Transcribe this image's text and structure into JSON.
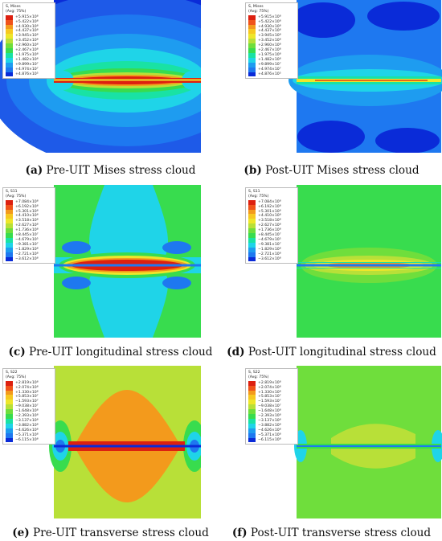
{
  "colors": {
    "blue_dark": "#0a2bd8",
    "blue_light": "#1e78f0",
    "cyan": "#1fd4e8",
    "teal": "#19e2a4",
    "green": "#38dc4e",
    "yellow_green": "#b8e038",
    "yellow": "#eee62a",
    "orange": "#f39a1c",
    "red": "#dd2010"
  },
  "legend_swatches": [
    "#dd2010",
    "#f0531a",
    "#f39a1c",
    "#f7c820",
    "#eee62a",
    "#b8e038",
    "#6fde3c",
    "#38dc4e",
    "#19e2a4",
    "#1fd4e8",
    "#1e9cf0",
    "#1e78f0",
    "#0a2bd8"
  ],
  "panels": [
    {
      "id": "a",
      "legend_title": "S, Mises",
      "legend_avg": "(Avg: 75%)",
      "legend_values": [
        "+5.915×10⁸",
        "+5.422×10⁸",
        "+4.930×10⁸",
        "+4.437×10⁸",
        "+3.945×10⁸",
        "+3.452×10⁸",
        "+2.960×10⁸",
        "+2.467×10⁸",
        "+1.975×10⁸",
        "+1.482×10⁸",
        "+9.899×10⁷",
        "+4.974×10⁷",
        "+4.876×10⁵"
      ],
      "caption_letter": "(a)",
      "caption_text": " Pre-UIT Mises stress cloud"
    },
    {
      "id": "b",
      "legend_title": "S, Mises",
      "legend_avg": "(Avg: 75%)",
      "legend_values": [
        "+5.915×10⁸",
        "+5.422×10⁸",
        "+4.930×10⁸",
        "+4.437×10⁸",
        "+3.945×10⁸",
        "+3.452×10⁸",
        "+2.960×10⁸",
        "+2.467×10⁸",
        "+1.975×10⁸",
        "+1.482×10⁸",
        "+9.899×10⁷",
        "+4.974×10⁷",
        "+4.876×10⁵"
      ],
      "caption_letter": "(b)",
      "caption_text": " Post-UIT Mises stress cloud"
    },
    {
      "id": "c",
      "legend_title": "S, S11",
      "legend_avg": "(Avg: 75%)",
      "legend_values": [
        "+7.084×10⁸",
        "+6.192×10⁸",
        "+5.301×10⁸",
        "+4.410×10⁸",
        "+3.518×10⁸",
        "+2.627×10⁸",
        "+1.736×10⁸",
        "+8.445×10⁷",
        "−4.679×10⁵",
        "−9.381×10⁷",
        "−1.829×10⁸",
        "−2.721×10⁸",
        "−3.612×10⁸"
      ],
      "caption_letter": "(c)",
      "caption_text": " Pre-UIT longitudinal stress cloud"
    },
    {
      "id": "d",
      "legend_title": "S, S11",
      "legend_avg": "(Avg: 75%)",
      "legend_values": [
        "+7.084×10⁸",
        "+6.192×10⁸",
        "+5.301×10⁸",
        "+4.410×10⁸",
        "+3.518×10⁸",
        "+2.627×10⁸",
        "+1.736×10⁸",
        "+8.445×10⁷",
        "−4.679×10⁵",
        "−9.381×10⁷",
        "−1.829×10⁸",
        "−2.721×10⁸",
        "−3.612×10⁸"
      ],
      "caption_letter": "(d)",
      "caption_text": " Post-UIT longitudinal stress cloud"
    },
    {
      "id": "e",
      "legend_title": "S, S22",
      "legend_avg": "(Avg: 75%)",
      "legend_values": [
        "+2.819×10⁸",
        "+2.074×10⁸",
        "+1.330×10⁸",
        "+5.853×10⁷",
        "−1.593×10⁷",
        "−9.038×10⁷",
        "−1.648×10⁸",
        "−2.393×10⁸",
        "−3.137×10⁸",
        "−3.882×10⁸",
        "−4.626×10⁸",
        "−5.371×10⁸",
        "−6.115×10⁸"
      ],
      "caption_letter": "(e)",
      "caption_text": " Pre-UIT transverse stress cloud"
    },
    {
      "id": "f",
      "legend_title": "S, S22",
      "legend_avg": "(Avg: 75%)",
      "legend_values": [
        "+2.819×10⁸",
        "+2.074×10⁸",
        "+1.330×10⁸",
        "+5.853×10⁷",
        "−1.593×10⁷",
        "−9.038×10⁷",
        "−1.648×10⁸",
        "−2.393×10⁸",
        "−3.137×10⁸",
        "−3.882×10⁸",
        "−4.626×10⁸",
        "−5.371×10⁸",
        "−6.115×10⁸"
      ],
      "caption_letter": "(f)",
      "caption_text": " Post-UIT transverse stress cloud"
    }
  ]
}
